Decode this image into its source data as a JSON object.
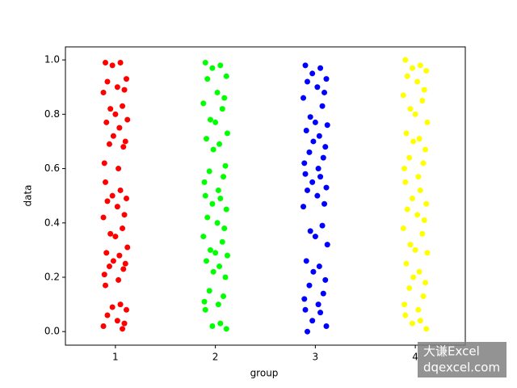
{
  "chart_data": {
    "type": "scatter",
    "x_label": "group",
    "y_label": "data",
    "xlim": [
      0.5,
      4.5
    ],
    "ylim": [
      -0.05,
      1.048
    ],
    "xticks": [
      1,
      2,
      3,
      4
    ],
    "yticks": [
      {
        "value": 0,
        "label": "0.0"
      },
      {
        "value": 0.2,
        "label": "0.2"
      },
      {
        "value": 0.4,
        "label": "0.4"
      },
      {
        "value": 0.6,
        "label": "0.6"
      },
      {
        "value": 0.8,
        "label": "0.8"
      },
      {
        "value": 1,
        "label": "1.0"
      }
    ],
    "series": [
      {
        "color": "#ff0000",
        "x": [
          0.9,
          1.05,
          0.97,
          1.11,
          0.92,
          1.02,
          1.09,
          0.88,
          1.07,
          0.95,
          1.0,
          1.12,
          0.91,
          1.04,
          0.98,
          1.1,
          0.94,
          1.08,
          0.89,
          1.03,
          0.9,
          1.05,
          0.97,
          1.11,
          0.92,
          1.02,
          1.09,
          0.88,
          1.07,
          0.95,
          1.0,
          1.12,
          0.91,
          1.04,
          0.98,
          1.1,
          0.94,
          1.08,
          0.89,
          1.03,
          0.9,
          1.05,
          0.97,
          1.11,
          0.92,
          1.02,
          1.09,
          0.88,
          1.07
        ],
        "values": [
          0.99,
          0.99,
          0.98,
          0.93,
          0.92,
          0.9,
          0.89,
          0.88,
          0.83,
          0.82,
          0.8,
          0.78,
          0.77,
          0.75,
          0.72,
          0.7,
          0.69,
          0.68,
          0.62,
          0.6,
          0.55,
          0.52,
          0.5,
          0.49,
          0.48,
          0.46,
          0.43,
          0.42,
          0.38,
          0.36,
          0.35,
          0.31,
          0.29,
          0.28,
          0.26,
          0.25,
          0.24,
          0.23,
          0.21,
          0.19,
          0.17,
          0.1,
          0.09,
          0.08,
          0.06,
          0.04,
          0.03,
          0.02,
          0.01
        ]
      },
      {
        "color": "#00ff00",
        "x": [
          1.9,
          2.05,
          1.97,
          2.11,
          1.92,
          2.02,
          2.09,
          1.88,
          2.07,
          1.95,
          2.0,
          2.12,
          1.91,
          2.04,
          1.98,
          2.1,
          1.94,
          2.08,
          1.89,
          2.03,
          1.9,
          2.05,
          1.97,
          2.11,
          1.92,
          2.02,
          2.09,
          1.88,
          2.07,
          1.95,
          2.0,
          2.12,
          1.91,
          2.04,
          1.98,
          2.1,
          1.94,
          2.08,
          1.89,
          2.03,
          1.9,
          2.05,
          1.97,
          2.11
        ],
        "values": [
          0.99,
          0.98,
          0.97,
          0.94,
          0.93,
          0.88,
          0.86,
          0.84,
          0.82,
          0.78,
          0.77,
          0.73,
          0.71,
          0.69,
          0.67,
          0.61,
          0.59,
          0.57,
          0.55,
          0.52,
          0.5,
          0.49,
          0.47,
          0.45,
          0.42,
          0.4,
          0.38,
          0.35,
          0.33,
          0.3,
          0.29,
          0.28,
          0.26,
          0.24,
          0.22,
          0.2,
          0.15,
          0.13,
          0.11,
          0.1,
          0.08,
          0.03,
          0.02,
          0.01
        ]
      },
      {
        "color": "#0000ff",
        "x": [
          2.9,
          3.05,
          2.97,
          3.11,
          2.92,
          3.02,
          3.09,
          2.88,
          3.07,
          2.95,
          3.0,
          3.12,
          2.91,
          3.04,
          2.98,
          3.1,
          2.94,
          3.08,
          2.89,
          3.03,
          2.9,
          3.05,
          2.97,
          3.11,
          2.92,
          3.02,
          3.09,
          2.88,
          3.07,
          2.95,
          3.0,
          3.12,
          2.91,
          3.04,
          2.98,
          3.1,
          2.94,
          3.08,
          2.89,
          3.03,
          2.9,
          3.05,
          2.97,
          3.11,
          2.92
        ],
        "values": [
          0.98,
          0.97,
          0.95,
          0.93,
          0.92,
          0.9,
          0.88,
          0.86,
          0.83,
          0.79,
          0.77,
          0.76,
          0.74,
          0.72,
          0.7,
          0.68,
          0.66,
          0.64,
          0.62,
          0.6,
          0.58,
          0.57,
          0.55,
          0.53,
          0.52,
          0.5,
          0.47,
          0.46,
          0.39,
          0.37,
          0.35,
          0.32,
          0.26,
          0.24,
          0.22,
          0.19,
          0.17,
          0.14,
          0.12,
          0.1,
          0.08,
          0.07,
          0.04,
          0.02,
          0.0
        ]
      },
      {
        "color": "#ffff00",
        "x": [
          3.9,
          4.05,
          3.97,
          4.11,
          3.92,
          4.02,
          4.09,
          3.88,
          4.07,
          3.95,
          4.0,
          4.12,
          3.91,
          4.04,
          3.98,
          4.1,
          3.94,
          4.08,
          3.89,
          4.03,
          3.9,
          4.05,
          3.97,
          4.11,
          3.92,
          4.02,
          4.09,
          3.88,
          4.07,
          3.95,
          4.0,
          4.12,
          3.91,
          4.04,
          3.98,
          4.1,
          3.94,
          4.08,
          3.89,
          4.03,
          3.9,
          4.05,
          3.97,
          4.11
        ],
        "values": [
          1.0,
          0.98,
          0.97,
          0.96,
          0.94,
          0.92,
          0.89,
          0.87,
          0.85,
          0.82,
          0.8,
          0.77,
          0.73,
          0.71,
          0.7,
          0.67,
          0.64,
          0.62,
          0.6,
          0.57,
          0.55,
          0.52,
          0.49,
          0.47,
          0.45,
          0.43,
          0.41,
          0.38,
          0.36,
          0.32,
          0.3,
          0.29,
          0.25,
          0.22,
          0.2,
          0.18,
          0.16,
          0.13,
          0.1,
          0.08,
          0.06,
          0.04,
          0.03,
          0.01
        ]
      }
    ]
  },
  "watermark": {
    "line1": "大谦Excel",
    "line2": "dqexcel.com"
  }
}
